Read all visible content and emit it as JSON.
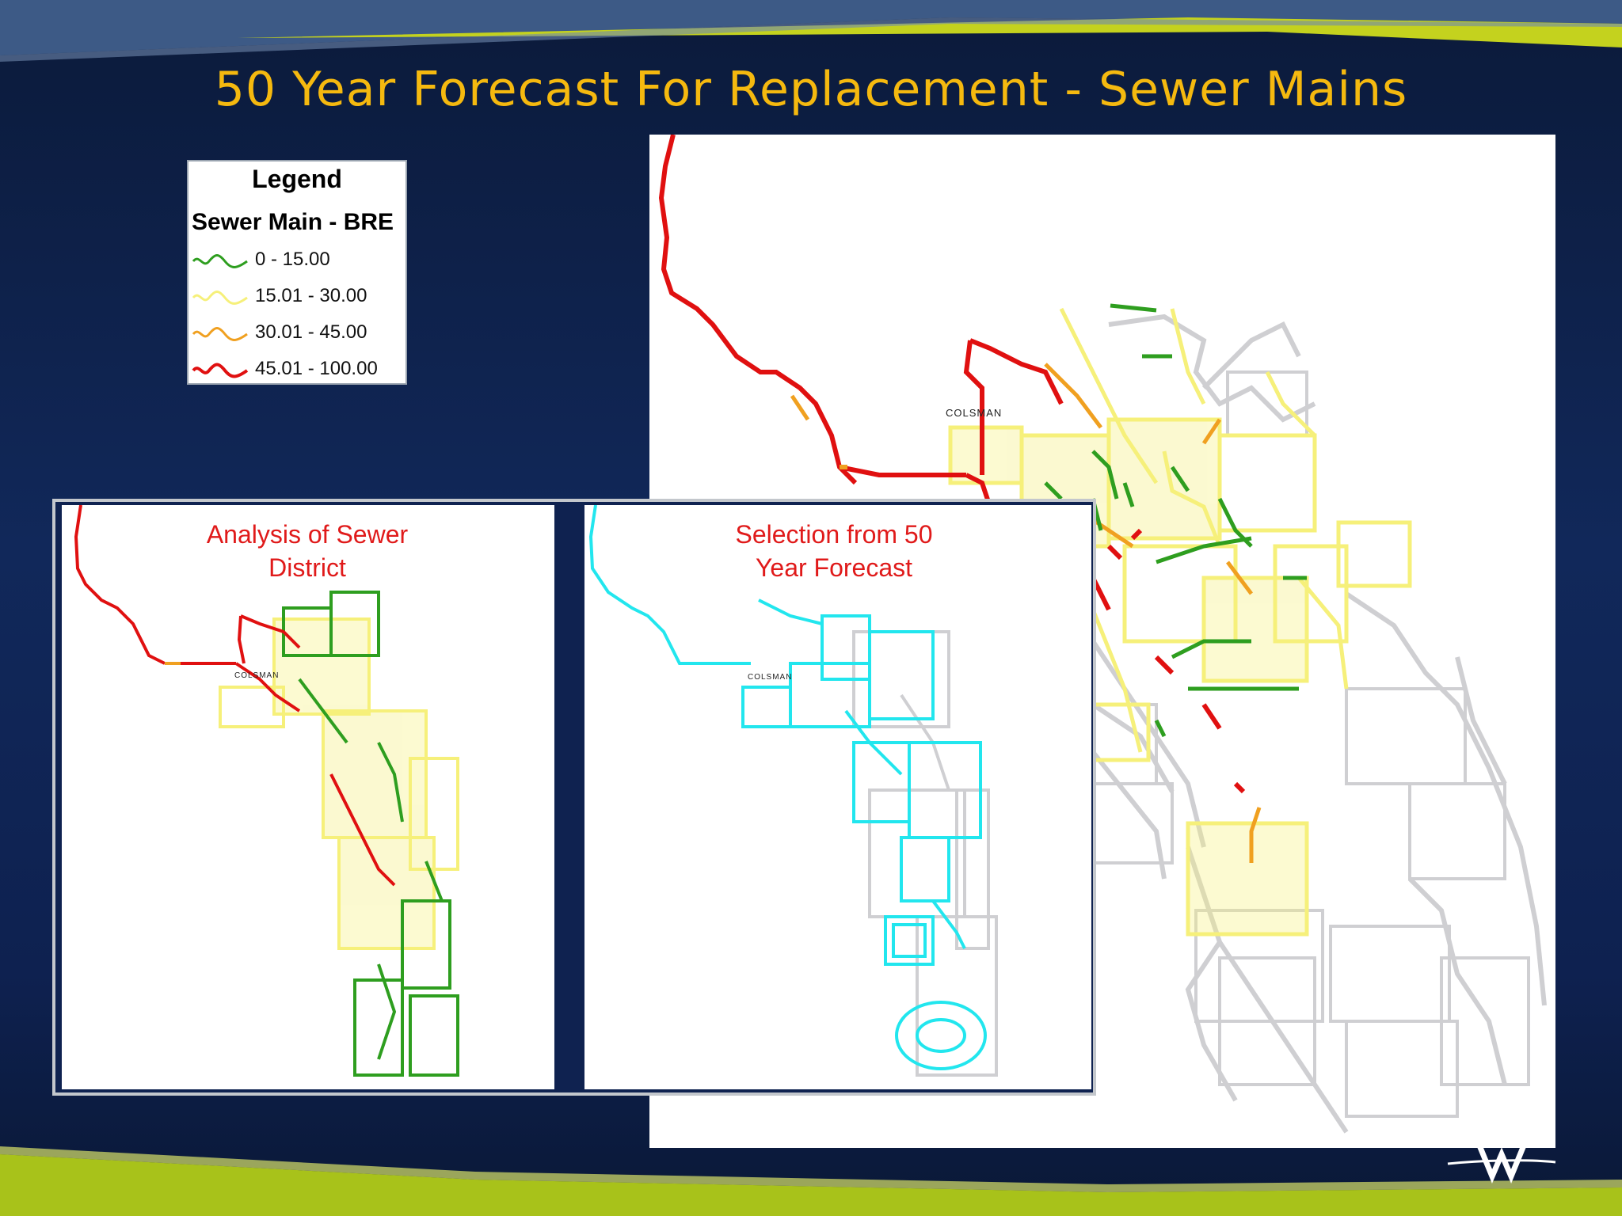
{
  "slide": {
    "title": "50 Year Forecast For Replacement - Sewer Mains"
  },
  "legend": {
    "title": "Legend",
    "layer": "Sewer Main - BRE",
    "classes": [
      {
        "label": "0 - 15.00",
        "color": "#2e9e1f"
      },
      {
        "label": "15.01 - 30.00",
        "color": "#f6f07a"
      },
      {
        "label": "30.01 - 45.00",
        "color": "#f0a020"
      },
      {
        "label": "45.01 - 100.00",
        "color": "#e01010"
      }
    ]
  },
  "main_map": {
    "road_label": "COLSMAN"
  },
  "inset_left": {
    "title_line1": "Analysis of Sewer",
    "title_line2": "District",
    "road_label": "COLSMAN"
  },
  "inset_right": {
    "title_line1": "Selection from 50",
    "title_line2": "Year Forecast",
    "road_label": "COLSMAN",
    "selection_color": "#22e6ee"
  },
  "colors": {
    "title": "#f5b90f",
    "unselected": "#cfcfd2",
    "accent_lime": "#a8c21a"
  }
}
